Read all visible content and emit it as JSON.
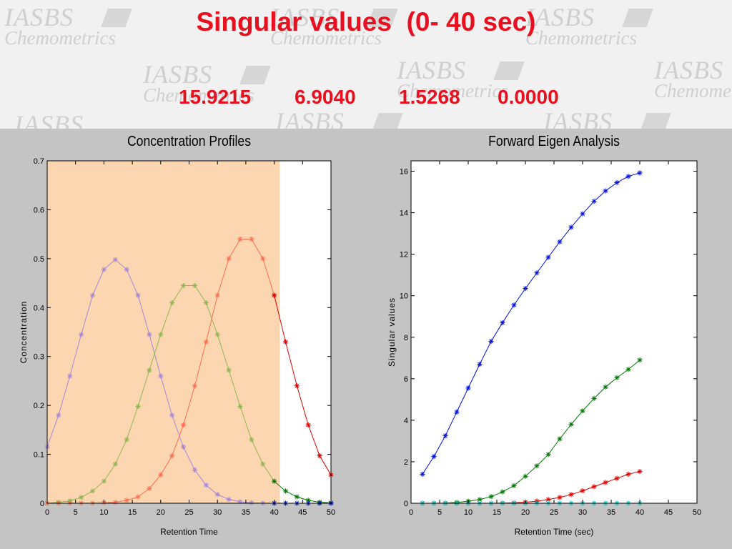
{
  "header": {
    "title": "Singular values  (0- 40 sec)",
    "singular_values": [
      "15.9215",
      "6.9040",
      "1.5268",
      "0.0000"
    ],
    "watermark": [
      "IASBS",
      "Chemometrics"
    ]
  },
  "colors": {
    "title": "#e8101f",
    "highlight": "#fcd6b0",
    "plot_background": "#c4c4c4",
    "purple": "#a488d8",
    "olive": "#90b650",
    "salmon": "#fa7050",
    "red": "#e00000",
    "green": "#007800",
    "blue": "#0010e0",
    "cyan": "#00c8c8"
  },
  "chart_data": [
    {
      "type": "line",
      "title": "Concentration Profiles",
      "xlabel": "Retention Time",
      "ylabel": "Concentration",
      "xlim": [
        0,
        50
      ],
      "ylim": [
        0,
        0.7
      ],
      "xticks": [
        "0",
        "5",
        "10",
        "15",
        "20",
        "25",
        "30",
        "35",
        "40",
        "45",
        "50"
      ],
      "yticks": [
        "0",
        "0.1",
        "0.2",
        "0.3",
        "0.4",
        "0.5",
        "0.6",
        "0.7"
      ],
      "grid": false,
      "highlight_range": [
        0,
        41
      ],
      "x": [
        0,
        2,
        4,
        6,
        8,
        10,
        12,
        14,
        16,
        18,
        20,
        22,
        24,
        26,
        28,
        30,
        32,
        34,
        36,
        38,
        40,
        42,
        44,
        46,
        48,
        50
      ],
      "series": [
        {
          "color": "purple",
          "values": [
            0.115,
            0.18,
            0.26,
            0.345,
            0.425,
            0.478,
            0.498,
            0.478,
            0.425,
            0.345,
            0.26,
            0.18,
            0.115,
            0.068,
            0.037,
            0.018,
            0.008,
            0.003,
            0.001,
            0.0,
            0.0,
            null,
            null,
            null,
            null,
            null
          ]
        },
        {
          "color": "olive",
          "values": [
            0.0,
            0.002,
            0.005,
            0.012,
            0.025,
            0.045,
            0.08,
            0.13,
            0.198,
            0.272,
            0.345,
            0.41,
            0.445,
            0.445,
            0.41,
            0.345,
            0.272,
            0.198,
            0.13,
            0.08,
            0.045,
            null,
            null,
            null,
            null,
            null
          ]
        },
        {
          "color": "green",
          "values": [
            null,
            null,
            null,
            null,
            null,
            null,
            null,
            null,
            null,
            null,
            null,
            null,
            null,
            null,
            null,
            null,
            null,
            null,
            null,
            null,
            0.045,
            0.025,
            0.013,
            0.006,
            0.002,
            0.001
          ]
        },
        {
          "color": "salmon",
          "values": [
            0.0,
            0.0,
            0.0,
            0.0,
            0.0,
            0.001,
            0.002,
            0.006,
            0.013,
            0.03,
            0.058,
            0.097,
            0.16,
            0.24,
            0.33,
            0.425,
            0.5,
            0.54,
            0.54,
            0.5,
            0.425,
            null,
            null,
            null,
            null,
            null
          ]
        },
        {
          "color": "red",
          "values": [
            null,
            null,
            null,
            null,
            null,
            null,
            null,
            null,
            null,
            null,
            null,
            null,
            null,
            null,
            null,
            null,
            null,
            null,
            null,
            null,
            0.425,
            0.33,
            0.24,
            0.16,
            0.097,
            0.058
          ]
        },
        {
          "color": "blue",
          "values": [
            null,
            null,
            null,
            null,
            null,
            null,
            null,
            null,
            null,
            null,
            null,
            null,
            null,
            null,
            null,
            null,
            null,
            null,
            null,
            null,
            0.0,
            0.0,
            0.0,
            0.0,
            0.0,
            0.0
          ]
        }
      ]
    },
    {
      "type": "line",
      "title": "Forward Eigen Analysis",
      "xlabel": "Retention Time (sec)",
      "ylabel": "Singular values",
      "xlim": [
        0,
        50
      ],
      "ylim": [
        0,
        16.5
      ],
      "xticks": [
        "0",
        "5",
        "10",
        "15",
        "20",
        "25",
        "30",
        "35",
        "40",
        "45",
        "50"
      ],
      "yticks": [
        "0",
        "2",
        "4",
        "6",
        "8",
        "10",
        "12",
        "14",
        "16"
      ],
      "grid": false,
      "x": [
        2,
        4,
        6,
        8,
        10,
        12,
        14,
        16,
        18,
        20,
        22,
        24,
        26,
        28,
        30,
        32,
        34,
        36,
        38,
        40
      ],
      "series": [
        {
          "color": "blue",
          "values": [
            1.4,
            2.25,
            3.25,
            4.4,
            5.55,
            6.7,
            7.8,
            8.7,
            9.55,
            10.35,
            11.1,
            11.85,
            12.6,
            13.3,
            13.95,
            14.55,
            15.05,
            15.45,
            15.75,
            15.92
          ]
        },
        {
          "color": "green",
          "values": [
            0.0,
            0.0,
            0.01,
            0.04,
            0.1,
            0.18,
            0.32,
            0.55,
            0.85,
            1.3,
            1.8,
            2.35,
            3.1,
            3.8,
            4.45,
            5.05,
            5.6,
            6.05,
            6.45,
            6.9
          ]
        },
        {
          "color": "red",
          "values": [
            0.0,
            0.0,
            0.0,
            0.0,
            0.0,
            0.0,
            0.0,
            0.01,
            0.02,
            0.05,
            0.1,
            0.18,
            0.28,
            0.42,
            0.6,
            0.8,
            1.0,
            1.2,
            1.4,
            1.53
          ]
        },
        {
          "color": "cyan",
          "values": [
            0.0,
            0.0,
            0.0,
            0.0,
            0.0,
            0.0,
            0.0,
            0.0,
            0.0,
            0.0,
            0.0,
            0.0,
            0.0,
            0.0,
            0.0,
            0.0,
            0.0,
            0.0,
            0.0,
            0.0
          ]
        }
      ]
    }
  ]
}
